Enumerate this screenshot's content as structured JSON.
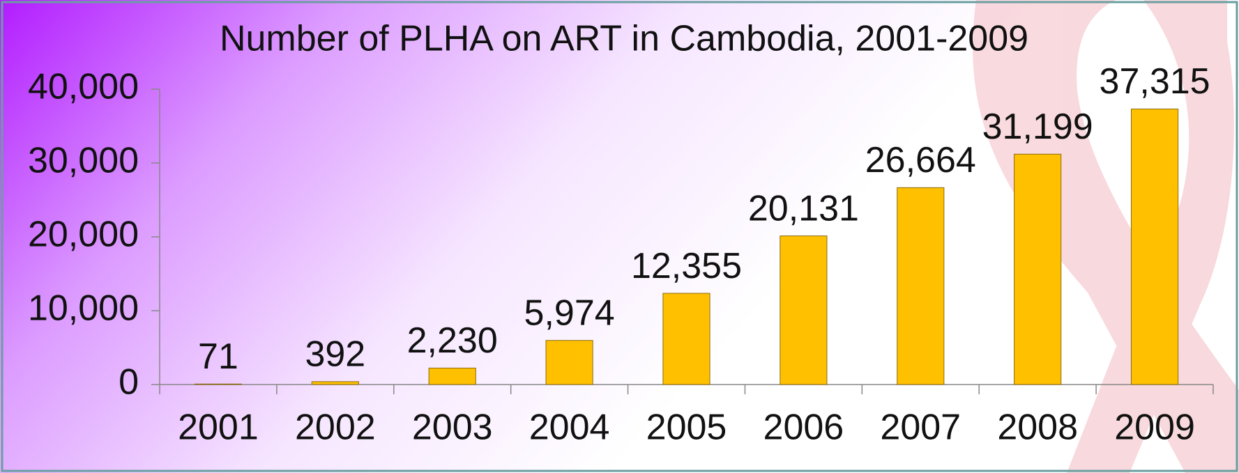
{
  "chart_data": {
    "type": "bar",
    "title": "Number of PLHA on ART in Cambodia, 2001-2009",
    "categories": [
      "2001",
      "2002",
      "2003",
      "2004",
      "2005",
      "2006",
      "2007",
      "2008",
      "2009"
    ],
    "values": [
      71,
      392,
      2230,
      5974,
      12355,
      20131,
      26664,
      31199,
      37315
    ],
    "value_labels": [
      "71",
      "392",
      "2,230",
      "5,974",
      "12,355",
      "20,131",
      "26,664",
      "31,199",
      "37,315"
    ],
    "color": "#ffc000",
    "ylim": [
      0,
      40000
    ],
    "yticks": [
      0,
      {
        "value": 10000,
        "label": "10,000"
      },
      {
        "value": 20000,
        "label": "20,000"
      },
      {
        "value": 30000,
        "label": "30,000"
      },
      {
        "value": 40000,
        "label": "40,000"
      }
    ],
    "grid": false
  }
}
